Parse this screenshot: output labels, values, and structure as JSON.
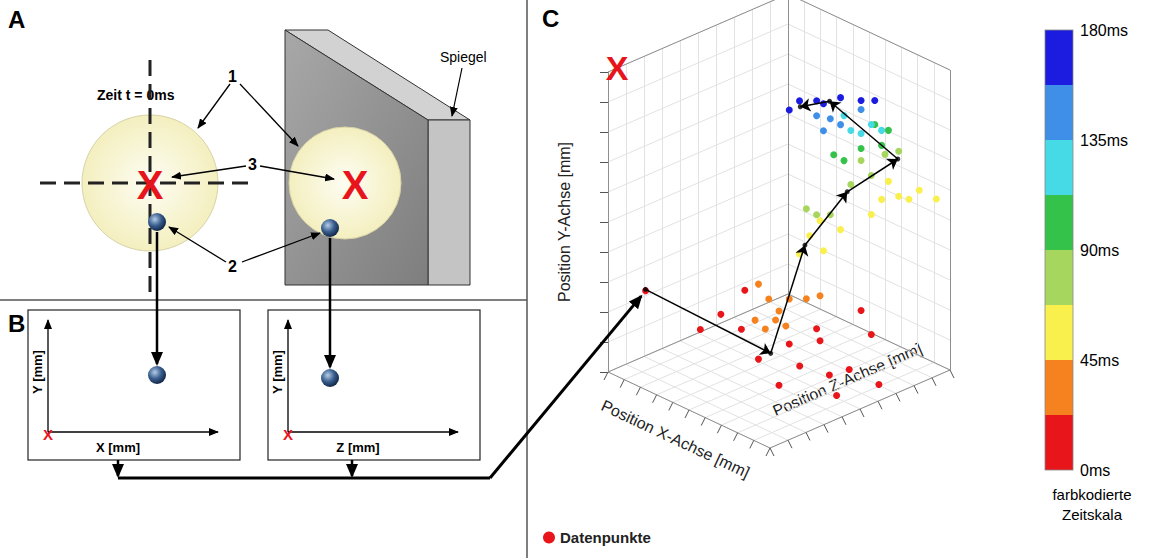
{
  "diagram": {
    "panel_A": {
      "letter": "A",
      "caption": "Zeit t = 0ms",
      "mirror": "Spiegel",
      "callouts": [
        "1",
        "2",
        "3"
      ],
      "target": "X"
    },
    "panel_B": {
      "letter": "B",
      "target": "X",
      "plots": [
        {
          "x_label": "X [mm]",
          "y_label": "Y [mm]"
        },
        {
          "x_label": "Z [mm]",
          "y_label": "Y [mm]"
        }
      ]
    }
  },
  "chart_data": {
    "letter": "C",
    "type": "scatter",
    "x_label": "Position X-Achse [mm]",
    "y_label": "Position Y-Achse [mm]",
    "z_label": "Position Z-Achse [mm]",
    "xlim": [
      0,
      10
    ],
    "ylim": [
      0,
      10
    ],
    "zlim": [
      0,
      10
    ],
    "xticks": [
      0,
      1,
      2,
      3,
      4,
      5,
      6,
      7,
      8,
      9,
      10
    ],
    "yticks": [
      0,
      1,
      2,
      3,
      4,
      5,
      6,
      7,
      8,
      9,
      10
    ],
    "zticks": [
      0,
      1,
      2,
      3,
      4,
      5,
      6,
      7,
      8,
      9,
      10
    ],
    "grid": true,
    "tick_labels": false,
    "legend": "bottom-left",
    "series": [
      {
        "name": "Datenpunkte",
        "color": "#e8151b",
        "marker": "circle",
        "x": [
          1.1,
          2.7,
          3.3,
          3.9,
          4.4,
          7.0,
          6.5,
          8.0,
          8.0,
          9.5,
          7.7,
          6.2,
          5.3,
          4.0,
          7.4,
          6.1,
          9.0,
          4.4,
          4.7,
          4.9,
          5.2,
          5.3,
          4.6,
          5.0,
          4.3,
          5.8,
          6.2,
          5.6,
          5.9,
          6.2,
          6.3,
          6.8,
          8.0,
          8.2,
          8.5,
          8.8,
          9.1,
          9.6,
          7.7,
          5.8,
          6.1,
          6.5,
          7.1,
          7.4,
          7.7,
          8.5,
          8.1,
          6.6,
          6.9,
          7.4,
          8.0,
          7.8,
          8.2,
          7.1,
          7.4,
          7.7,
          8.0,
          6.9,
          6.5,
          6.8,
          6.1,
          6.3,
          7.4,
          5.3,
          5.6,
          6.1,
          6.8,
          7.4,
          7.8,
          6.3
        ],
        "y": [
          2.7,
          1.4,
          1.9,
          1.4,
          0.4,
          0.5,
          0.6,
          0.6,
          0.5,
          0.3,
          1.2,
          1.0,
          0.9,
          2.7,
          2.0,
          1.4,
          0.3,
          2.9,
          2.4,
          1.7,
          1.5,
          2.4,
          1.4,
          2.0,
          1.7,
          2.4,
          2.5,
          3.9,
          4.5,
          5.0,
          4.0,
          4.7,
          5.7,
          6.3,
          5.8,
          5.7,
          6.0,
          5.7,
          5.2,
          5.4,
          5.2,
          5.2,
          6.2,
          7.0,
          6.5,
          7.3,
          7.2,
          7.2,
          7.0,
          7.4,
          7.5,
          8.2,
          8.0,
          8.0,
          7.9,
          8.2,
          8.0,
          8.5,
          8.4,
          8.2,
          8.5,
          8.0,
          8.7,
          8.7,
          9.0,
          9.0,
          9.1,
          9.0,
          9.0,
          8.9
        ],
        "z": [
          1.1,
          2.7,
          3.3,
          3.9,
          4.4,
          3.2,
          4.8,
          5.1,
          6.2,
          6.5,
          7.7,
          6.2,
          5.3,
          4.0,
          7.4,
          6.1,
          4.6,
          4.4,
          4.7,
          4.9,
          5.2,
          5.3,
          4.6,
          5.0,
          4.3,
          5.8,
          6.2,
          5.6,
          5.9,
          6.2,
          6.3,
          6.8,
          8.0,
          8.2,
          8.5,
          8.8,
          9.1,
          9.6,
          7.7,
          5.8,
          6.1,
          6.5,
          7.1,
          7.4,
          7.7,
          8.5,
          8.1,
          6.6,
          6.9,
          7.4,
          8.0,
          7.8,
          8.2,
          7.1,
          7.4,
          7.7,
          8.0,
          6.9,
          6.5,
          6.8,
          6.1,
          6.3,
          7.4,
          5.3,
          5.6,
          6.1,
          6.8,
          7.4,
          7.8,
          6.3
        ],
        "time": [
          0,
          5,
          8,
          3,
          10,
          12,
          15,
          18,
          20,
          6,
          14,
          16,
          4,
          9,
          2,
          11,
          7,
          25,
          30,
          28,
          35,
          40,
          23,
          33,
          38,
          42,
          44,
          47,
          50,
          55,
          48,
          52,
          60,
          65,
          62,
          58,
          64,
          66,
          57,
          70,
          72,
          75,
          80,
          85,
          78,
          88,
          82,
          92,
          95,
          100,
          105,
          108,
          110,
          115,
          120,
          125,
          130,
          133,
          140,
          145,
          150,
          138,
          155,
          160,
          165,
          170,
          172,
          175,
          178,
          168
        ]
      }
    ],
    "path": {
      "color": "#000000",
      "x": [
        1.2,
        5.6,
        6.6,
        8.1,
        9.0,
        5.9,
        5.2
      ],
      "y": [
        2.8,
        1.0,
        4.6,
        6.5,
        7.3,
        8.7,
        8.6
      ],
      "z": [
        1.0,
        4.0,
        5.0,
        6.0,
        8.0,
        7.0,
        6.0
      ]
    },
    "annotations": [
      {
        "text": "X",
        "color": "#e8141c",
        "x": 0,
        "y": 10,
        "z": 0.5
      }
    ],
    "colorbar": {
      "label": "farbkodierte Zeitskala",
      "range": [
        0,
        180
      ],
      "ticks": [
        {
          "value": 0,
          "label": "0ms"
        },
        {
          "value": 45,
          "label": "45ms"
        },
        {
          "value": 90,
          "label": "90ms"
        },
        {
          "value": 135,
          "label": "135ms"
        },
        {
          "value": 180,
          "label": "180ms"
        }
      ],
      "colors": [
        "#e8151b",
        "#f5821f",
        "#f9ef4d",
        "#a6d65d",
        "#34c24a",
        "#46d9e6",
        "#3f8fe8",
        "#1c1ce0"
      ]
    }
  }
}
